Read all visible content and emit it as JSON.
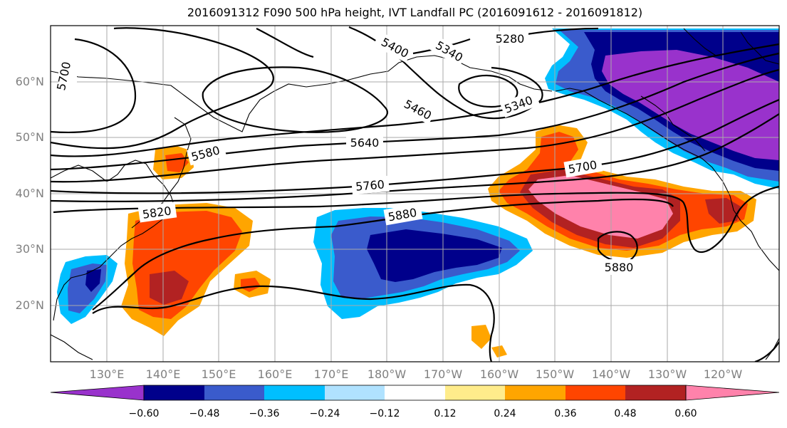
{
  "title": "2016091312 F090 500 hPa height, IVT Landfall PC (2016091612 - 2016091812)",
  "lat_labels": [
    "60°N",
    "50°N",
    "40°N",
    "30°N",
    "20°N"
  ],
  "lon_labels": [
    "130°E",
    "140°E",
    "150°E",
    "160°E",
    "170°E",
    "180°W",
    "170°W",
    "160°W",
    "150°W",
    "140°W",
    "130°W",
    "120°W"
  ],
  "contour_labels": [
    "5700",
    "5400",
    "5340",
    "5280",
    "5460",
    "5340",
    "5580",
    "5640",
    "5700",
    "5760",
    "5880",
    "5820",
    "5880"
  ],
  "colorbar": {
    "ticks": [
      "−0.60",
      "−0.48",
      "−0.36",
      "−0.24",
      "−0.12",
      "0.12",
      "0.24",
      "0.36",
      "0.48",
      "0.60"
    ],
    "colors": [
      "#9932CC",
      "#00008B",
      "#3A5BCC",
      "#00BFFF",
      "#B0E2FF",
      "#FFFFFF",
      "#FFEC8B",
      "#FFA500",
      "#FF4500",
      "#B22222",
      "#FF82AB"
    ]
  }
}
